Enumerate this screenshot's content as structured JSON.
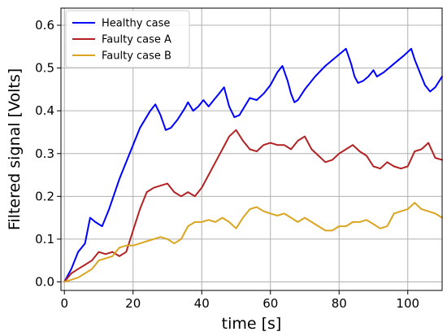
{
  "chart_data": {
    "type": "line",
    "title": "",
    "xlabel": "time [s]",
    "ylabel": "Filtered signal [Volts]",
    "xlim": [
      -1,
      110
    ],
    "ylim": [
      -0.02,
      0.64
    ],
    "xticks": [
      0,
      20,
      40,
      60,
      80,
      100
    ],
    "yticks": [
      0.0,
      0.1,
      0.2,
      0.3,
      0.4,
      0.5,
      0.6
    ],
    "x_tick_labels": [
      "0",
      "20",
      "40",
      "60",
      "80",
      "100"
    ],
    "y_tick_labels": [
      "0.0",
      "0.1",
      "0.2",
      "0.3",
      "0.4",
      "0.5",
      "0.6"
    ],
    "grid": true,
    "legend_position": "top-left",
    "series": [
      {
        "name": "Healthy case",
        "color": "#0000ff",
        "x": [
          0,
          2,
          4,
          6,
          7.5,
          9,
          11,
          13,
          16,
          19,
          22,
          25,
          26.5,
          28,
          29.5,
          31,
          33,
          35,
          36,
          37.5,
          39,
          40.5,
          42,
          43.5,
          45,
          46.5,
          48,
          49.5,
          51,
          52.5,
          54,
          56,
          58,
          60,
          62,
          63.5,
          65,
          66,
          67,
          68,
          70,
          73,
          76,
          79,
          82,
          83.5,
          84.5,
          85.5,
          87,
          88.5,
          90,
          91,
          93,
          96,
          99,
          101,
          102,
          103.5,
          105,
          106.5,
          108,
          110
        ],
        "y": [
          0.0,
          0.03,
          0.07,
          0.09,
          0.15,
          0.14,
          0.13,
          0.17,
          0.24,
          0.3,
          0.36,
          0.4,
          0.415,
          0.39,
          0.355,
          0.36,
          0.38,
          0.405,
          0.42,
          0.4,
          0.41,
          0.425,
          0.41,
          0.425,
          0.44,
          0.455,
          0.41,
          0.385,
          0.39,
          0.41,
          0.43,
          0.425,
          0.44,
          0.46,
          0.49,
          0.505,
          0.47,
          0.44,
          0.42,
          0.425,
          0.45,
          0.48,
          0.505,
          0.525,
          0.545,
          0.51,
          0.48,
          0.465,
          0.47,
          0.48,
          0.495,
          0.48,
          0.49,
          0.51,
          0.53,
          0.545,
          0.52,
          0.49,
          0.46,
          0.445,
          0.455,
          0.48
        ]
      },
      {
        "name": "Faulty case A",
        "color": "#b22222",
        "x": [
          0,
          2,
          4,
          6,
          8,
          10,
          12,
          14,
          16,
          18,
          20,
          22,
          24,
          26,
          28,
          30,
          32,
          34,
          36,
          38,
          40,
          42,
          44,
          46,
          48,
          50,
          52,
          54,
          56,
          58,
          60,
          62,
          64,
          66,
          68,
          70,
          72,
          74,
          76,
          78,
          80,
          82,
          84,
          86,
          88,
          90,
          92,
          94,
          96,
          98,
          100,
          102,
          104,
          106,
          108,
          110
        ],
        "y": [
          0.0,
          0.02,
          0.03,
          0.04,
          0.05,
          0.07,
          0.065,
          0.07,
          0.06,
          0.07,
          0.12,
          0.17,
          0.21,
          0.22,
          0.225,
          0.23,
          0.21,
          0.2,
          0.21,
          0.2,
          0.22,
          0.25,
          0.28,
          0.31,
          0.34,
          0.355,
          0.33,
          0.31,
          0.305,
          0.32,
          0.325,
          0.32,
          0.32,
          0.31,
          0.33,
          0.34,
          0.31,
          0.295,
          0.28,
          0.285,
          0.3,
          0.31,
          0.32,
          0.305,
          0.295,
          0.27,
          0.265,
          0.28,
          0.27,
          0.265,
          0.27,
          0.305,
          0.31,
          0.325,
          0.29,
          0.285
        ]
      },
      {
        "name": "Faulty case B",
        "color": "#daa520",
        "x": [
          0,
          2,
          4,
          6,
          8,
          10,
          12,
          14,
          16,
          18,
          20,
          22,
          24,
          26,
          28,
          30,
          32,
          34,
          36,
          38,
          40,
          42,
          44,
          46,
          48,
          50,
          52,
          54,
          56,
          58,
          60,
          62,
          64,
          66,
          68,
          70,
          72,
          74,
          76,
          78,
          80,
          82,
          84,
          86,
          88,
          90,
          92,
          94,
          96,
          98,
          100,
          102,
          104,
          106,
          108,
          110
        ],
        "y": [
          0.0,
          0.005,
          0.01,
          0.02,
          0.03,
          0.05,
          0.055,
          0.06,
          0.08,
          0.085,
          0.085,
          0.09,
          0.095,
          0.1,
          0.105,
          0.1,
          0.09,
          0.1,
          0.13,
          0.14,
          0.14,
          0.145,
          0.14,
          0.15,
          0.14,
          0.125,
          0.15,
          0.17,
          0.175,
          0.165,
          0.16,
          0.155,
          0.16,
          0.15,
          0.14,
          0.15,
          0.14,
          0.13,
          0.12,
          0.12,
          0.13,
          0.13,
          0.14,
          0.14,
          0.145,
          0.135,
          0.125,
          0.13,
          0.16,
          0.165,
          0.17,
          0.185,
          0.17,
          0.165,
          0.16,
          0.15
        ]
      }
    ]
  }
}
